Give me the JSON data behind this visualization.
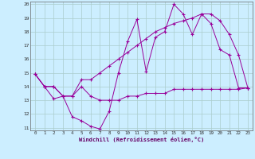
{
  "xlabel": "Windchill (Refroidissement éolien,°C)",
  "bg_color": "#cceeff",
  "grid_color": "#aacccc",
  "line_color": "#990099",
  "xlim": [
    -0.5,
    23.5
  ],
  "ylim": [
    10.8,
    20.2
  ],
  "yticks": [
    11,
    12,
    13,
    14,
    15,
    16,
    17,
    18,
    19,
    20
  ],
  "xticks": [
    0,
    1,
    2,
    3,
    4,
    5,
    6,
    7,
    8,
    9,
    10,
    11,
    12,
    13,
    14,
    15,
    16,
    17,
    18,
    19,
    20,
    21,
    22,
    23
  ],
  "series": [
    [
      14.9,
      14.0,
      13.1,
      13.3,
      11.8,
      11.5,
      11.1,
      10.9,
      12.2,
      15.0,
      17.3,
      18.9,
      15.1,
      17.6,
      18.0,
      20.0,
      19.3,
      17.8,
      19.3,
      18.6,
      16.7,
      16.3,
      13.9,
      13.9
    ],
    [
      14.9,
      14.0,
      14.0,
      13.3,
      13.3,
      14.0,
      13.3,
      13.0,
      13.0,
      13.0,
      13.3,
      13.3,
      13.5,
      13.5,
      13.5,
      13.8,
      13.8,
      13.8,
      13.8,
      13.8,
      13.8,
      13.8,
      13.8,
      13.9
    ],
    [
      14.9,
      14.0,
      14.0,
      13.3,
      13.3,
      14.5,
      14.5,
      15.0,
      15.5,
      16.0,
      16.5,
      17.0,
      17.5,
      18.0,
      18.3,
      18.6,
      18.8,
      19.0,
      19.3,
      19.3,
      18.8,
      17.8,
      16.3,
      13.9
    ]
  ]
}
